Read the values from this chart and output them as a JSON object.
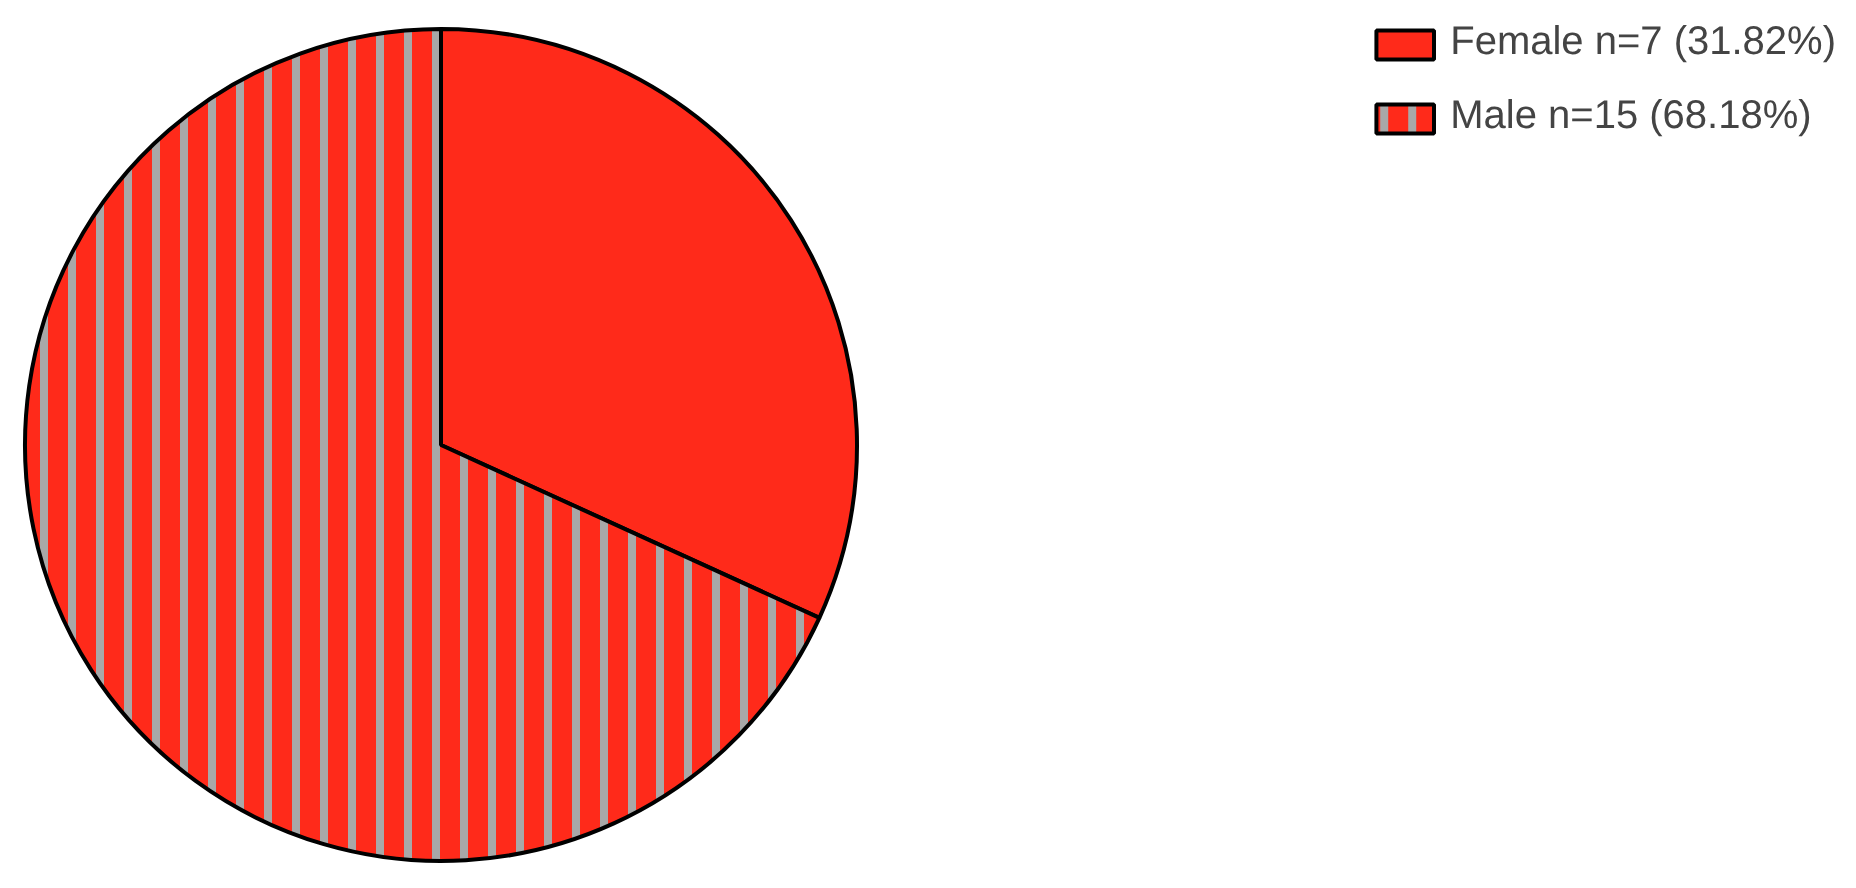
{
  "chart_data": {
    "type": "pie",
    "categories": [
      "Female n=7 (31.82%)",
      "Male n=15 (68.18%)"
    ],
    "values": [
      7,
      15
    ],
    "colors": [
      "#ff2a1a",
      "#ff2a1a"
    ],
    "legend": "top right"
  }
}
